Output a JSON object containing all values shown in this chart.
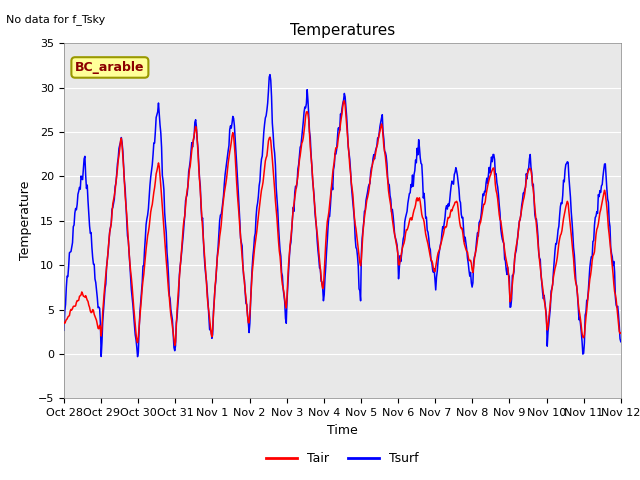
{
  "title": "Temperatures",
  "xlabel": "Time",
  "ylabel": "Temperature",
  "annotation_text": "No data for f_Tsky",
  "legend_label": "BC_arable",
  "tair_label": "Tair",
  "tsurf_label": "Tsurf",
  "tair_color": "red",
  "tsurf_color": "blue",
  "ylim": [
    -5,
    35
  ],
  "yticks": [
    -5,
    0,
    5,
    10,
    15,
    20,
    25,
    30,
    35
  ],
  "bg_color": "#e8e8e8",
  "legend_box_facecolor": "#ffff99",
  "legend_box_edgecolor": "#999900",
  "days": [
    "Oct 28",
    "Oct 29",
    "Oct 30",
    "Oct 31",
    "Nov 1",
    "Nov 2",
    "Nov 3",
    "Nov 4",
    "Nov 5",
    "Nov 6",
    "Nov 7",
    "Nov 8",
    "Nov 9",
    "Nov 10",
    "Nov 11",
    "Nov 12"
  ],
  "tick_fontsize": 8,
  "label_fontsize": 9,
  "title_fontsize": 11
}
